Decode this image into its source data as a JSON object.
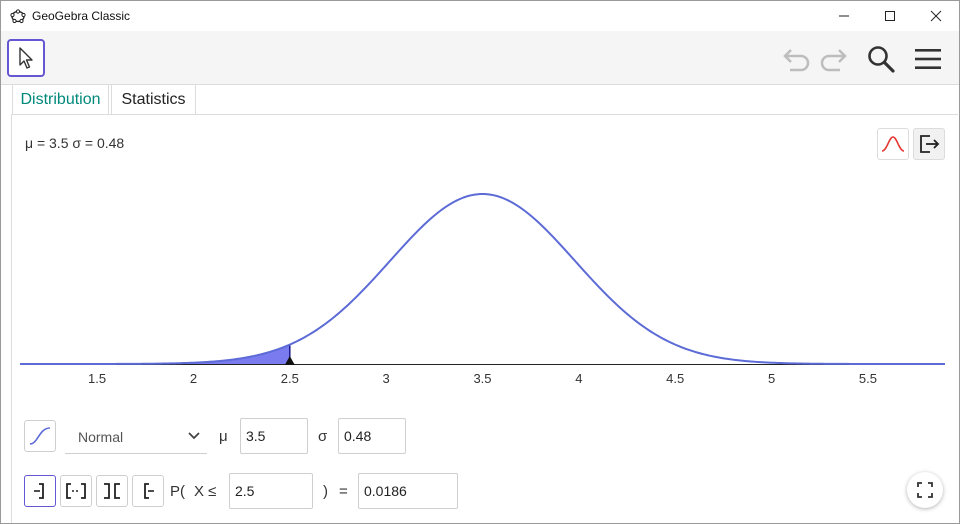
{
  "window": {
    "title": "GeoGebra Classic"
  },
  "tabs": [
    {
      "label": "Distribution",
      "active": true
    },
    {
      "label": "Statistics",
      "active": false
    }
  ],
  "params_text": "μ = 3.5 σ = 0.48",
  "chart_data": {
    "type": "area",
    "distribution": "Normal",
    "mu": 3.5,
    "sigma": 0.48,
    "xlim": [
      1.1,
      5.9
    ],
    "ticks": [
      "1.5",
      "2",
      "2.5",
      "3",
      "3.5",
      "4",
      "4.5",
      "5",
      "5.5"
    ],
    "shaded_to": 2.5,
    "curve_color": "#5c6bd6",
    "fill_color": "#7b7bf0"
  },
  "controls": {
    "distribution_select": "Normal",
    "mu_label": "μ",
    "mu_value": "3.5",
    "sigma_label": "σ",
    "sigma_value": "0.48",
    "prob_prefix": "P(",
    "prob_var": "X ≤",
    "prob_bound": "2.5",
    "prob_close": ")",
    "equals": "=",
    "result": "0.0186"
  },
  "colors": {
    "accent": "#6557d2",
    "tab_active": "#00897b"
  }
}
